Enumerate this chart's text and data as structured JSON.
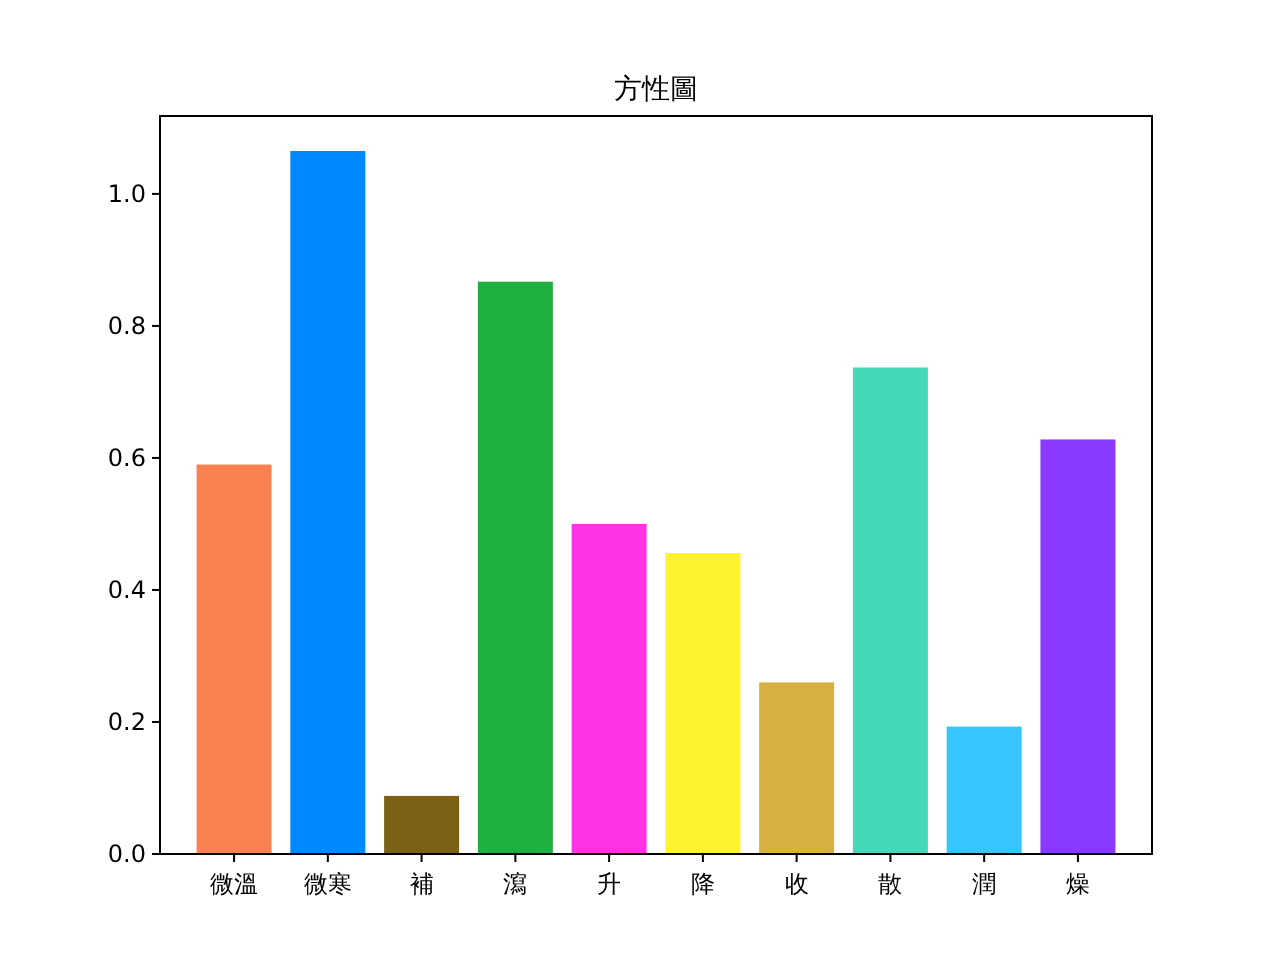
{
  "chart_data": {
    "type": "bar",
    "title": "方性圖",
    "categories": [
      "微溫",
      "微寒",
      "補",
      "瀉",
      "升",
      "降",
      "收",
      "散",
      "潤",
      "燥"
    ],
    "values": [
      0.59,
      1.065,
      0.088,
      0.867,
      0.5,
      0.456,
      0.26,
      0.737,
      0.193,
      0.628
    ],
    "colors": [
      "#fa8250",
      "#0088ff",
      "#7a6114",
      "#20b040",
      "#ff33e6",
      "#fff22e",
      "#d6b042",
      "#43d8b8",
      "#36c5ff",
      "#8a39ff"
    ],
    "ylim": [
      0,
      1.118
    ],
    "yticks": [
      {
        "value": 0,
        "label": "0.0"
      },
      {
        "value": 0.2,
        "label": "0.2"
      },
      {
        "value": 0.4,
        "label": "0.4"
      },
      {
        "value": 0.6,
        "label": "0.6"
      },
      {
        "value": 0.8,
        "label": "0.8"
      },
      {
        "value": 1,
        "label": "1.0"
      }
    ],
    "grid": false
  }
}
